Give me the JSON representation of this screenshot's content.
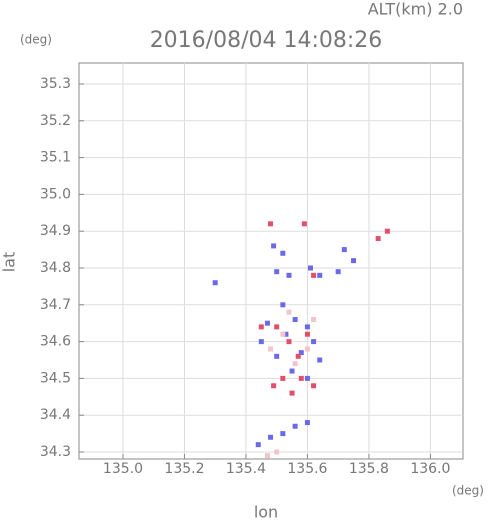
{
  "chart_data": {
    "type": "scatter",
    "title": "2016/08/04 14:08:26",
    "annotation": "ALT(km) 2.0",
    "y_unit": "(deg)",
    "x_unit": "(deg)",
    "xlabel": "lon",
    "ylabel": "lat",
    "xlim": [
      134.857,
      136.106
    ],
    "ylim": [
      34.281,
      35.357
    ],
    "xticks": [
      {
        "value": 135.0,
        "label": "135.0"
      },
      {
        "value": 135.2,
        "label": "135.2"
      },
      {
        "value": 135.4,
        "label": "135.4"
      },
      {
        "value": 135.6,
        "label": "135.6"
      },
      {
        "value": 135.8,
        "label": "135.8"
      },
      {
        "value": 136.0,
        "label": "136.0"
      }
    ],
    "yticks": [
      {
        "value": 34.3,
        "label": "34.3"
      },
      34.4,
      34.5,
      34.6,
      34.7,
      34.8,
      34.9,
      {
        "value": 35.0,
        "label": "35.0"
      },
      35.1,
      35.2,
      35.3
    ],
    "grid": true,
    "series": [
      {
        "color": "#6a6ae8",
        "x": [
          135.49,
          135.52,
          135.5,
          135.54,
          135.61,
          135.64,
          135.7,
          135.72,
          135.75,
          135.3,
          135.47,
          135.53,
          135.56,
          135.6,
          135.62,
          135.45,
          135.58,
          135.64,
          135.5,
          135.52,
          135.55,
          135.6,
          135.48,
          135.52,
          135.56,
          135.6,
          135.44
        ],
        "y": [
          34.86,
          34.84,
          34.79,
          34.78,
          34.8,
          34.78,
          34.79,
          34.85,
          34.82,
          34.76,
          34.65,
          34.62,
          34.66,
          34.64,
          34.6,
          34.6,
          34.57,
          34.55,
          34.56,
          34.7,
          34.52,
          34.5,
          34.34,
          34.35,
          34.37,
          34.38,
          34.32
        ]
      },
      {
        "color": "#e0506a",
        "x": [
          135.48,
          135.59,
          135.83,
          135.86,
          135.62,
          135.5,
          135.45,
          135.54,
          135.6,
          135.57,
          135.52,
          135.49,
          135.55,
          135.62,
          135.58
        ],
        "y": [
          34.92,
          34.92,
          34.88,
          34.9,
          34.78,
          34.64,
          34.64,
          34.6,
          34.62,
          34.56,
          34.5,
          34.48,
          34.46,
          34.48,
          34.5
        ]
      },
      {
        "color": "#f2c4cc",
        "x": [
          135.52,
          135.48,
          135.56,
          135.6,
          135.54,
          135.62,
          135.5,
          135.47
        ],
        "y": [
          34.62,
          34.58,
          34.54,
          34.58,
          34.68,
          34.66,
          34.3,
          34.29
        ]
      }
    ]
  }
}
